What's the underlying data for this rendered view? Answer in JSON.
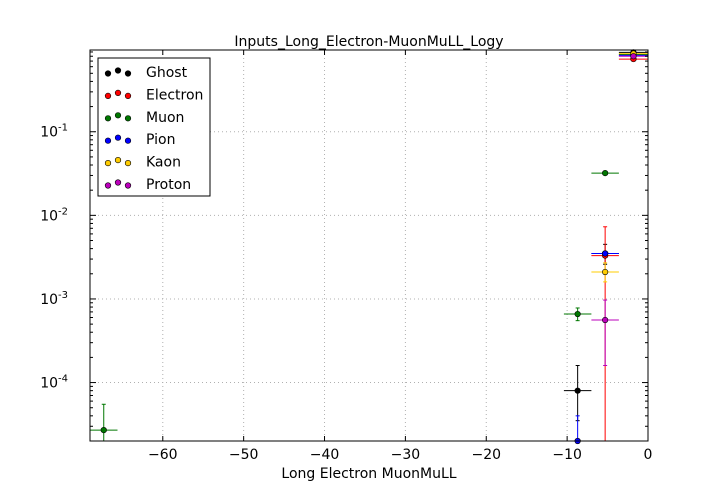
{
  "chart_data": {
    "type": "scatter",
    "title": "Inputs_Long_Electron-MuonMuLL_Logy",
    "xlabel": "Long Electron MuonMuLL",
    "ylabel": "",
    "xlim": [
      -69,
      0
    ],
    "ylim": [
      2e-05,
      0.95
    ],
    "yscale": "log",
    "grid": true,
    "legend_position": "top-left",
    "x_ticks": [
      -60,
      -50,
      -40,
      -30,
      -20,
      -10,
      0
    ],
    "x_tick_labels": [
      "−60",
      "−50",
      "−40",
      "−30",
      "−20",
      "−10",
      "0"
    ],
    "y_ticks": [
      0.0001,
      0.001,
      0.01,
      0.1
    ],
    "y_tick_labels": [
      {
        "base": "10",
        "exp": "-4"
      },
      {
        "base": "10",
        "exp": "-3"
      },
      {
        "base": "10",
        "exp": "-2"
      },
      {
        "base": "10",
        "exp": "-1"
      }
    ],
    "series": [
      {
        "name": "Ghost",
        "color": "#000000",
        "points": [
          {
            "x": -1.8,
            "y": 0.89,
            "xerr": 1.8,
            "ylo": 0.86,
            "yhi": 0.92
          },
          {
            "x": -8.7,
            "y": 8e-05,
            "xerr": 1.7,
            "ylo": 3.5e-05,
            "yhi": 0.00016
          },
          {
            "x": -5.3,
            "y": 0.0035,
            "xerr": 1.7,
            "ylo": 0.0026,
            "yhi": 0.0045
          }
        ]
      },
      {
        "name": "Electron",
        "color": "#ff0000",
        "points": [
          {
            "x": -1.8,
            "y": 0.74,
            "xerr": 1.8,
            "ylo": 0.72,
            "yhi": 0.76
          },
          {
            "x": -5.3,
            "y": 0.0033,
            "xerr": 1.7,
            "ylo": 2e-05,
            "yhi": 0.0073
          }
        ]
      },
      {
        "name": "Muon",
        "color": "#007700",
        "points": [
          {
            "x": -67.3,
            "y": 2.7e-05,
            "xerr": 1.7,
            "ylo": 2e-05,
            "yhi": 5.5e-05
          },
          {
            "x": -8.7,
            "y": 0.00066,
            "xerr": 1.7,
            "ylo": 0.00055,
            "yhi": 0.00078
          },
          {
            "x": -5.3,
            "y": 0.032,
            "xerr": 1.7,
            "ylo": 0.031,
            "yhi": 0.033
          },
          {
            "x": -1.8,
            "y": 0.84,
            "xerr": 1.8,
            "ylo": 0.83,
            "yhi": 0.85
          }
        ]
      },
      {
        "name": "Pion",
        "color": "#0000ff",
        "points": [
          {
            "x": -8.7,
            "y": 2e-05,
            "xerr": 0.0,
            "ylo": 2e-05,
            "yhi": 4e-05
          },
          {
            "x": -5.3,
            "y": 0.0035,
            "xerr": 1.7,
            "ylo": 0.0033,
            "yhi": 0.0037
          },
          {
            "x": -1.8,
            "y": 0.82,
            "xerr": 1.8,
            "ylo": 0.81,
            "yhi": 0.83
          }
        ]
      },
      {
        "name": "Kaon",
        "color": "#ffcc00",
        "points": [
          {
            "x": -5.3,
            "y": 0.0021,
            "xerr": 1.7,
            "ylo": 0.0016,
            "yhi": 0.0027
          },
          {
            "x": -1.8,
            "y": 0.86,
            "xerr": 1.8,
            "ylo": 0.85,
            "yhi": 0.87
          }
        ]
      },
      {
        "name": "Proton",
        "color": "#bb00bb",
        "points": [
          {
            "x": -5.3,
            "y": 0.00056,
            "xerr": 1.7,
            "ylo": 0.00016,
            "yhi": 0.00097
          },
          {
            "x": -1.8,
            "y": 0.8,
            "xerr": 1.8,
            "ylo": 0.79,
            "yhi": 0.81
          }
        ]
      }
    ]
  }
}
